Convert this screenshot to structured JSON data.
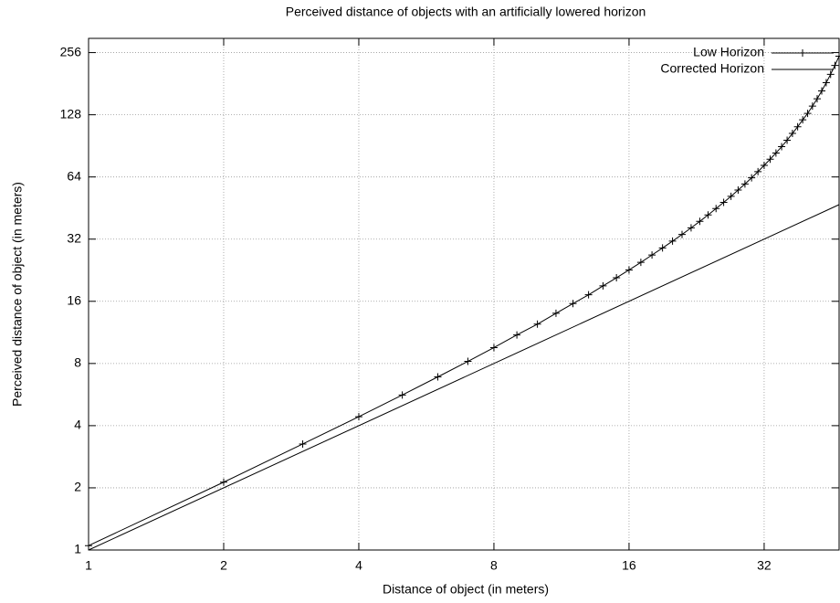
{
  "chart_data": {
    "type": "line",
    "title": "Perceived distance of objects with an artificially lowered horizon",
    "x_label": "Distance of object (in meters)",
    "y_label": "Perceived distance of object (in meters)",
    "xlog": 2,
    "ylog": 2,
    "grid": true,
    "legend": "top-right",
    "xlim": [
      1,
      47
    ],
    "ylim": [
      1,
      300
    ],
    "xticks": [
      1,
      2,
      4,
      8,
      16,
      32
    ],
    "yticks": [
      1,
      2,
      4,
      8,
      16,
      32,
      64,
      128,
      256
    ],
    "series": [
      {
        "name": "Low Horizon",
        "color": "#000000",
        "marker": "plus",
        "x": [
          1,
          2,
          3,
          4,
          5,
          6,
          7,
          8,
          9,
          10,
          11,
          12,
          13,
          14,
          15,
          16,
          17,
          18,
          19,
          20,
          21,
          22,
          23,
          24,
          25,
          26,
          27,
          28,
          29,
          30,
          31,
          32,
          33,
          34,
          35,
          36,
          37,
          38,
          39,
          40,
          41,
          42,
          43,
          44,
          45,
          46,
          47
        ],
        "values": [
          1.05,
          2.13,
          3.26,
          4.42,
          5.63,
          6.89,
          8.19,
          9.55,
          11.0,
          12.4,
          14.0,
          15.6,
          17.2,
          19.0,
          20.8,
          22.7,
          24.7,
          26.8,
          29.0,
          31.3,
          33.7,
          36.3,
          39.0,
          41.9,
          45.0,
          48.2,
          51.6,
          55.3,
          59.2,
          63.4,
          67.9,
          72.8,
          78.0,
          83.6,
          89.7,
          96.4,
          104,
          112,
          121,
          130,
          141,
          153,
          167,
          183,
          201,
          222,
          246
        ]
      },
      {
        "name": "Corrected Horizon",
        "color": "#000000",
        "marker": "none",
        "x": [
          1,
          47
        ],
        "values": [
          1,
          47
        ]
      }
    ]
  }
}
